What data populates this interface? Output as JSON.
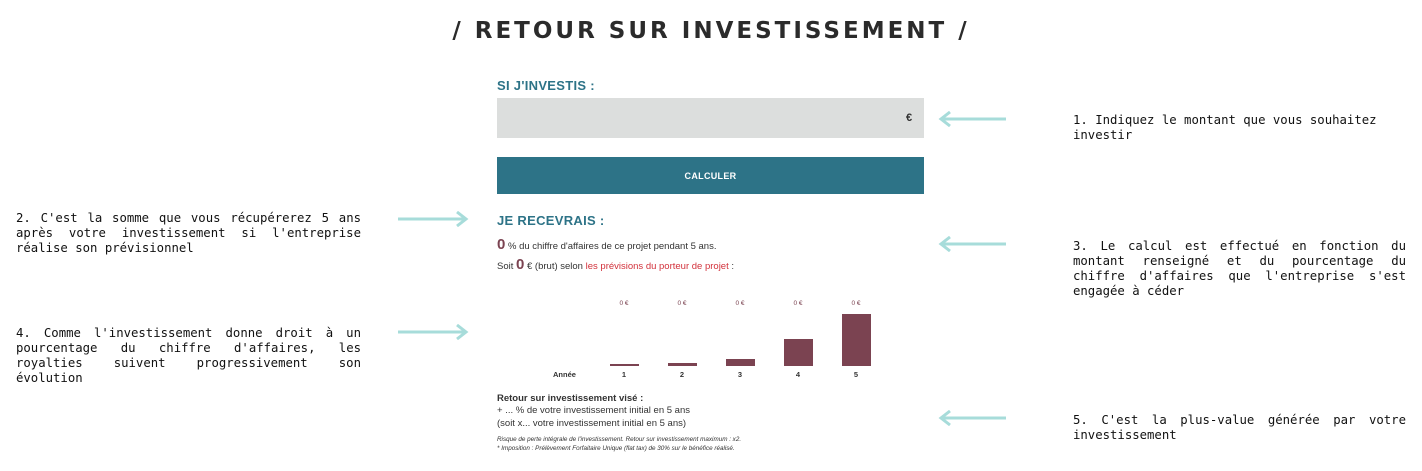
{
  "title": "/ RETOUR SUR INVESTISSEMENT /",
  "invest": {
    "label": "SI J'INVESTIS :",
    "currency": "€",
    "value": ""
  },
  "calc_button": "CALCULER",
  "receive": {
    "label": "JE RECEVRAIS :",
    "pct_value": "0",
    "pct_text": "% du chiffre d'affaires de ce projet pendant 5 ans.",
    "soit": "Soit",
    "amount_value": "0",
    "amount_text": "€ (brut) selon",
    "link_text": "les prévisions du porteur de projet",
    "link_suffix": " :"
  },
  "chart_data": {
    "type": "bar",
    "categories": [
      "1",
      "2",
      "3",
      "4",
      "5"
    ],
    "value_labels": [
      "0 €",
      "0 €",
      "0 €",
      "0 €",
      "0 €"
    ],
    "relative_heights": [
      0.03,
      0.05,
      0.14,
      0.52,
      1.0
    ],
    "xlabel": "Année",
    "bar_color": "#7b4351"
  },
  "roi": {
    "title": "Retour sur investissement visé :",
    "line1": "+ ... % de votre investissement initial en 5 ans",
    "line2": "(soit x... votre investissement initial en 5 ans)",
    "note1": "Risque de perte intégrale de l'investissement. Retour sur investissement maximum : x2.",
    "note2": "* Imposition : Prélèvement Forfaitaire Unique (flat tax) de 30% sur le bénéfice réalisé."
  },
  "annotations": {
    "a1": "1. Indiquez le montant que vous souhaitez investir",
    "a2": "2. C'est la somme que vous récupérerez 5 ans après votre investissement si l'entreprise réalise son prévisionnel",
    "a3": "3. Le calcul est effectué en fonction du montant renseigné et du pourcentage du chiffre d'affaires que l'entreprise s'est engagée à céder",
    "a4": "4. Comme l'investissement donne droit à un pourcentage du chiffre d'affaires, les royalties suivent progressivement son évolution",
    "a5": "5. C'est la plus-value générée par votre investissement"
  },
  "colors": {
    "accent": "#2d7387",
    "bar": "#7b4351",
    "link": "#d2313b",
    "arrow": "#a7dcda"
  }
}
